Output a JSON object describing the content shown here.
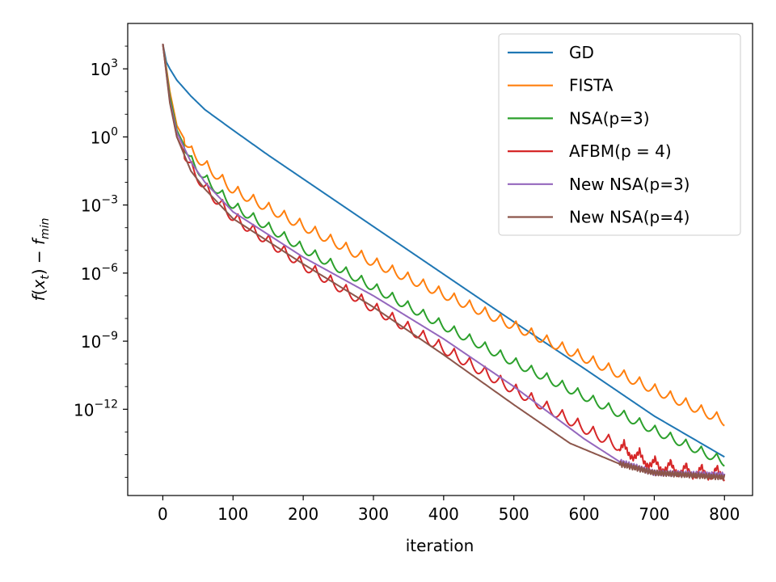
{
  "chart_data": {
    "type": "line",
    "title": "",
    "xlabel": "iteration",
    "ylabel_parts": {
      "f": "f",
      "open": "(",
      "x": "x",
      "t": "t",
      "close": ")",
      "minus": " − ",
      "f2": "f",
      "min": "min"
    },
    "xlim": [
      -50,
      840
    ],
    "ylim_log10": [
      -15.8,
      5.0
    ],
    "yscale": "log",
    "grid": false,
    "x_ticks": [
      0,
      100,
      200,
      300,
      400,
      500,
      600,
      700,
      800
    ],
    "x_tick_labels": [
      "0",
      "100",
      "200",
      "300",
      "400",
      "500",
      "600",
      "700",
      "800"
    ],
    "y_ticks_log10": [
      3,
      0,
      -3,
      -6,
      -9,
      -12
    ],
    "y_tick_labels": [
      {
        "base": "10",
        "exp": "3"
      },
      {
        "base": "10",
        "exp": "0"
      },
      {
        "base": "10",
        "exp": "-3"
      },
      {
        "base": "10",
        "exp": "-6"
      },
      {
        "base": "10",
        "exp": "-9"
      },
      {
        "base": "10",
        "exp": "-12"
      }
    ],
    "legend_position": "top-right",
    "series": [
      {
        "name": "GD",
        "color": "#1f77b4",
        "x": [
          0,
          5,
          10,
          20,
          40,
          60,
          100,
          150,
          200,
          300,
          400,
          500,
          600,
          700,
          800
        ],
        "log10_y": [
          4.1,
          3.3,
          3.0,
          2.5,
          1.8,
          1.2,
          0.3,
          -0.8,
          -1.85,
          -3.95,
          -6.05,
          -8.15,
          -10.2,
          -12.3,
          -14.1
        ],
        "oscillation": 0
      },
      {
        "name": "FISTA",
        "color": "#ff7f0e",
        "x": [
          0,
          10,
          20,
          40,
          60,
          100,
          200,
          300,
          400,
          500,
          600,
          700,
          800
        ],
        "log10_y": [
          4.1,
          2.0,
          0.5,
          -0.6,
          -1.2,
          -2.3,
          -3.9,
          -5.5,
          -6.9,
          -8.3,
          -9.7,
          -11.1,
          -12.5
        ],
        "oscillation": 0.5
      },
      {
        "name": "NSA(p=3)",
        "color": "#2ca02c",
        "x": [
          0,
          10,
          20,
          40,
          60,
          100,
          200,
          300,
          400,
          500,
          600,
          700,
          800
        ],
        "log10_y": [
          4.1,
          1.8,
          0.3,
          -1.0,
          -1.8,
          -3.0,
          -4.9,
          -6.6,
          -8.3,
          -9.9,
          -11.4,
          -12.9,
          -14.3
        ],
        "oscillation": 0.45
      },
      {
        "name": "AFBM(p = 4)",
        "color": "#d62728",
        "x": [
          0,
          10,
          20,
          40,
          60,
          100,
          200,
          300,
          400,
          500,
          600,
          700,
          750,
          800
        ],
        "log10_y": [
          4.1,
          1.6,
          0.0,
          -1.3,
          -2.2,
          -3.5,
          -5.6,
          -7.5,
          -9.3,
          -11.1,
          -12.8,
          -14.4,
          -14.7,
          -14.8
        ],
        "oscillation": 0.55
      },
      {
        "name": "New NSA(p=3)",
        "color": "#9467bd",
        "x": [
          0,
          10,
          20,
          40,
          60,
          100,
          200,
          300,
          400,
          500,
          600,
          650,
          700,
          800
        ],
        "log10_y": [
          4.1,
          1.6,
          0.2,
          -1.1,
          -2.0,
          -3.3,
          -5.3,
          -7.0,
          -8.9,
          -11.0,
          -13.3,
          -14.3,
          -14.8,
          -14.9
        ],
        "oscillation": 0
      },
      {
        "name": "New NSA(p=4)",
        "color": "#8c564b",
        "x": [
          0,
          10,
          20,
          40,
          60,
          100,
          200,
          300,
          400,
          500,
          580,
          650,
          700,
          800
        ],
        "log10_y": [
          4.1,
          1.5,
          0.0,
          -1.5,
          -2.3,
          -3.6,
          -5.6,
          -7.5,
          -9.6,
          -11.8,
          -13.5,
          -14.4,
          -14.8,
          -15.0
        ],
        "oscillation": 0
      }
    ]
  }
}
